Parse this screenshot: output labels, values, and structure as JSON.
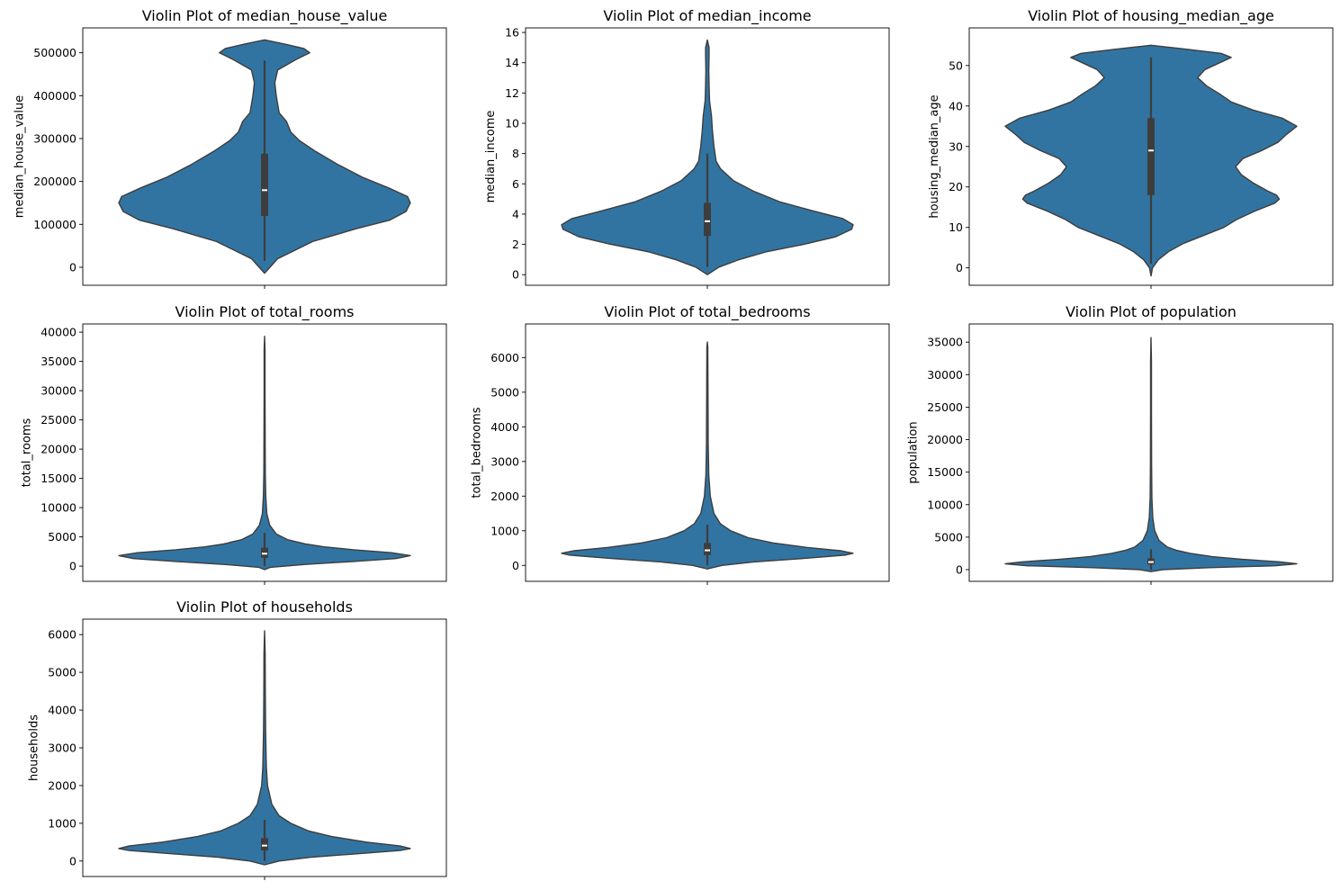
{
  "colors": {
    "violin_fill": "#3274a1",
    "violin_edge": "#3d3d3d",
    "box": "#3d3d3d",
    "median": "#ffffff",
    "background": "#ffffff",
    "frame": "#000000"
  },
  "chart_data": [
    {
      "type": "violin",
      "title": "Violin Plot of median_house_value",
      "xlabel": "",
      "ylabel": "median_house_value",
      "ylim": [
        -42000,
        558000
      ],
      "yticks": [
        0,
        100000,
        200000,
        300000,
        400000,
        500000
      ],
      "yticklabels": [
        "0",
        "100000",
        "200000",
        "300000",
        "400000",
        "500000"
      ],
      "grid": false,
      "stats": {
        "q1": 119600,
        "median": 179700,
        "q3": 264700,
        "whisker_low": 14999,
        "whisker_high": 482000,
        "kde_min": -14000,
        "kde_max": 530000
      },
      "density_profile": [
        [
          -14000,
          0.0
        ],
        [
          20000,
          0.09
        ],
        [
          60000,
          0.33
        ],
        [
          90000,
          0.63
        ],
        [
          110000,
          0.86
        ],
        [
          130000,
          0.97
        ],
        [
          150000,
          1.0
        ],
        [
          165000,
          0.98
        ],
        [
          185000,
          0.85
        ],
        [
          210000,
          0.67
        ],
        [
          240000,
          0.5
        ],
        [
          270000,
          0.35
        ],
        [
          295000,
          0.24
        ],
        [
          315000,
          0.18
        ],
        [
          340000,
          0.15
        ],
        [
          360000,
          0.1
        ],
        [
          400000,
          0.08
        ],
        [
          430000,
          0.07
        ],
        [
          460000,
          0.09
        ],
        [
          485000,
          0.22
        ],
        [
          500000,
          0.31
        ],
        [
          510000,
          0.27
        ],
        [
          520000,
          0.14
        ],
        [
          530000,
          0.0
        ]
      ]
    },
    {
      "type": "violin",
      "title": "Violin Plot of median_income",
      "xlabel": "",
      "ylabel": "median_income",
      "ylim": [
        -0.7,
        16.3
      ],
      "yticks": [
        0,
        2,
        4,
        6,
        8,
        10,
        12,
        14,
        16
      ],
      "yticklabels": [
        "0",
        "2",
        "4",
        "6",
        "8",
        "10",
        "12",
        "14",
        "16"
      ],
      "grid": false,
      "stats": {
        "q1": 2.56,
        "median": 3.53,
        "q3": 4.74,
        "whisker_low": 0.5,
        "whisker_high": 8.0,
        "kde_min": 0.0,
        "kde_max": 15.5
      },
      "density_profile": [
        [
          0.0,
          0.0
        ],
        [
          0.5,
          0.08
        ],
        [
          1.0,
          0.22
        ],
        [
          1.5,
          0.4
        ],
        [
          2.0,
          0.66
        ],
        [
          2.5,
          0.88
        ],
        [
          3.0,
          0.99
        ],
        [
          3.3,
          1.0
        ],
        [
          3.7,
          0.93
        ],
        [
          4.2,
          0.73
        ],
        [
          4.8,
          0.5
        ],
        [
          5.5,
          0.32
        ],
        [
          6.2,
          0.18
        ],
        [
          7.0,
          0.09
        ],
        [
          7.5,
          0.06
        ],
        [
          8.5,
          0.045
        ],
        [
          9.5,
          0.035
        ],
        [
          10.5,
          0.028
        ],
        [
          11.5,
          0.015
        ],
        [
          12.5,
          0.012
        ],
        [
          13.5,
          0.01
        ],
        [
          14.5,
          0.012
        ],
        [
          15.0,
          0.012
        ],
        [
          15.5,
          0.0
        ]
      ]
    },
    {
      "type": "violin",
      "title": "Violin Plot of housing_median_age",
      "xlabel": "",
      "ylabel": "housing_median_age",
      "ylim": [
        -4.3,
        59.3
      ],
      "yticks": [
        0,
        10,
        20,
        30,
        40,
        50
      ],
      "yticklabels": [
        "0",
        "10",
        "20",
        "30",
        "40",
        "50"
      ],
      "grid": false,
      "stats": {
        "q1": 18,
        "median": 29,
        "q3": 37,
        "whisker_low": 1,
        "whisker_high": 52,
        "kde_min": -2,
        "kde_max": 55
      },
      "density_profile": [
        [
          -2,
          0.0
        ],
        [
          0,
          0.01
        ],
        [
          2,
          0.05
        ],
        [
          4,
          0.12
        ],
        [
          6,
          0.22
        ],
        [
          8,
          0.36
        ],
        [
          10,
          0.5
        ],
        [
          12,
          0.59
        ],
        [
          14,
          0.71
        ],
        [
          16,
          0.85
        ],
        [
          17,
          0.88
        ],
        [
          18,
          0.86
        ],
        [
          19,
          0.8
        ],
        [
          21,
          0.7
        ],
        [
          23,
          0.62
        ],
        [
          25,
          0.58
        ],
        [
          27,
          0.63
        ],
        [
          29,
          0.76
        ],
        [
          31,
          0.87
        ],
        [
          33,
          0.93
        ],
        [
          35,
          1.0
        ],
        [
          37,
          0.9
        ],
        [
          39,
          0.7
        ],
        [
          41,
          0.55
        ],
        [
          43,
          0.47
        ],
        [
          45,
          0.38
        ],
        [
          47,
          0.32
        ],
        [
          49,
          0.37
        ],
        [
          51,
          0.49
        ],
        [
          52,
          0.55
        ],
        [
          53,
          0.48
        ],
        [
          54,
          0.25
        ],
        [
          55,
          0.0
        ]
      ]
    },
    {
      "type": "violin",
      "title": "Violin Plot of total_rooms",
      "xlabel": "",
      "ylabel": "total_rooms",
      "ylim": [
        -2600,
        41400
      ],
      "yticks": [
        0,
        5000,
        10000,
        15000,
        20000,
        25000,
        30000,
        35000,
        40000
      ],
      "yticklabels": [
        "0",
        "5000",
        "10000",
        "15000",
        "20000",
        "25000",
        "30000",
        "35000",
        "40000"
      ],
      "grid": false,
      "stats": {
        "q1": 1448,
        "median": 2127,
        "q3": 3148,
        "whisker_low": 2,
        "whisker_high": 5698,
        "kde_min": -600,
        "kde_max": 39300
      },
      "density_profile": [
        [
          -600,
          0.0
        ],
        [
          -200,
          0.04
        ],
        [
          300,
          0.28
        ],
        [
          800,
          0.61
        ],
        [
          1300,
          0.9
        ],
        [
          1800,
          1.0
        ],
        [
          2300,
          0.87
        ],
        [
          2800,
          0.61
        ],
        [
          3300,
          0.41
        ],
        [
          3800,
          0.28
        ],
        [
          4500,
          0.16
        ],
        [
          5500,
          0.08
        ],
        [
          7000,
          0.035
        ],
        [
          9000,
          0.015
        ],
        [
          12000,
          0.008
        ],
        [
          16000,
          0.005
        ],
        [
          22000,
          0.004
        ],
        [
          30000,
          0.003
        ],
        [
          37000,
          0.003
        ],
        [
          39300,
          0.0
        ]
      ]
    },
    {
      "type": "violin",
      "title": "Violin Plot of total_bedrooms",
      "xlabel": "",
      "ylabel": "total_bedrooms",
      "ylim": [
        -460,
        6970
      ],
      "yticks": [
        0,
        1000,
        2000,
        3000,
        4000,
        5000,
        6000
      ],
      "yticklabels": [
        "0",
        "1000",
        "2000",
        "3000",
        "4000",
        "5000",
        "6000"
      ],
      "grid": false,
      "stats": {
        "q1": 296,
        "median": 435,
        "q3": 647,
        "whisker_low": 1,
        "whisker_high": 1173,
        "kde_min": -100,
        "kde_max": 6450
      },
      "density_profile": [
        [
          -100,
          0.0
        ],
        [
          0,
          0.1
        ],
        [
          100,
          0.32
        ],
        [
          200,
          0.66
        ],
        [
          300,
          0.95
        ],
        [
          350,
          1.0
        ],
        [
          420,
          0.92
        ],
        [
          520,
          0.68
        ],
        [
          650,
          0.45
        ],
        [
          800,
          0.28
        ],
        [
          1000,
          0.16
        ],
        [
          1200,
          0.09
        ],
        [
          1500,
          0.045
        ],
        [
          2000,
          0.02
        ],
        [
          2600,
          0.01
        ],
        [
          3500,
          0.006
        ],
        [
          4500,
          0.005
        ],
        [
          5500,
          0.004
        ],
        [
          6300,
          0.003
        ],
        [
          6450,
          0.0
        ]
      ]
    },
    {
      "type": "violin",
      "title": "Violin Plot of population",
      "xlabel": "",
      "ylabel": "population",
      "ylim": [
        -1800,
        37800
      ],
      "yticks": [
        0,
        5000,
        10000,
        15000,
        20000,
        25000,
        30000,
        35000
      ],
      "yticklabels": [
        "0",
        "5000",
        "10000",
        "15000",
        "20000",
        "25000",
        "30000",
        "35000"
      ],
      "grid": false,
      "stats": {
        "q1": 787,
        "median": 1166,
        "q3": 1725,
        "whisker_low": 3,
        "whisker_high": 3132,
        "kde_min": -300,
        "kde_max": 35700
      },
      "density_profile": [
        [
          -300,
          0.0
        ],
        [
          0,
          0.08
        ],
        [
          300,
          0.4
        ],
        [
          600,
          0.85
        ],
        [
          900,
          1.0
        ],
        [
          1200,
          0.88
        ],
        [
          1600,
          0.62
        ],
        [
          2000,
          0.42
        ],
        [
          2500,
          0.27
        ],
        [
          3000,
          0.17
        ],
        [
          3500,
          0.11
        ],
        [
          4500,
          0.055
        ],
        [
          6000,
          0.025
        ],
        [
          8000,
          0.012
        ],
        [
          11000,
          0.006
        ],
        [
          16000,
          0.004
        ],
        [
          24000,
          0.003
        ],
        [
          32000,
          0.003
        ],
        [
          35700,
          0.0
        ]
      ]
    },
    {
      "type": "violin",
      "title": "Violin Plot of households",
      "xlabel": "",
      "ylabel": "households",
      "ylim": [
        -410,
        6410
      ],
      "yticks": [
        0,
        1000,
        2000,
        3000,
        4000,
        5000,
        6000
      ],
      "yticklabels": [
        "0",
        "1000",
        "2000",
        "3000",
        "4000",
        "5000",
        "6000"
      ],
      "grid": false,
      "stats": {
        "q1": 280,
        "median": 409,
        "q3": 605,
        "whisker_low": 1,
        "whisker_high": 1092,
        "kde_min": -100,
        "kde_max": 6100
      },
      "density_profile": [
        [
          -100,
          0.0
        ],
        [
          0,
          0.1
        ],
        [
          100,
          0.32
        ],
        [
          200,
          0.66
        ],
        [
          280,
          0.93
        ],
        [
          330,
          1.0
        ],
        [
          400,
          0.93
        ],
        [
          500,
          0.7
        ],
        [
          650,
          0.46
        ],
        [
          800,
          0.3
        ],
        [
          1000,
          0.18
        ],
        [
          1200,
          0.1
        ],
        [
          1500,
          0.05
        ],
        [
          2000,
          0.02
        ],
        [
          2500,
          0.012
        ],
        [
          3500,
          0.007
        ],
        [
          4500,
          0.005
        ],
        [
          5500,
          0.004
        ],
        [
          6100,
          0.0
        ]
      ]
    }
  ]
}
